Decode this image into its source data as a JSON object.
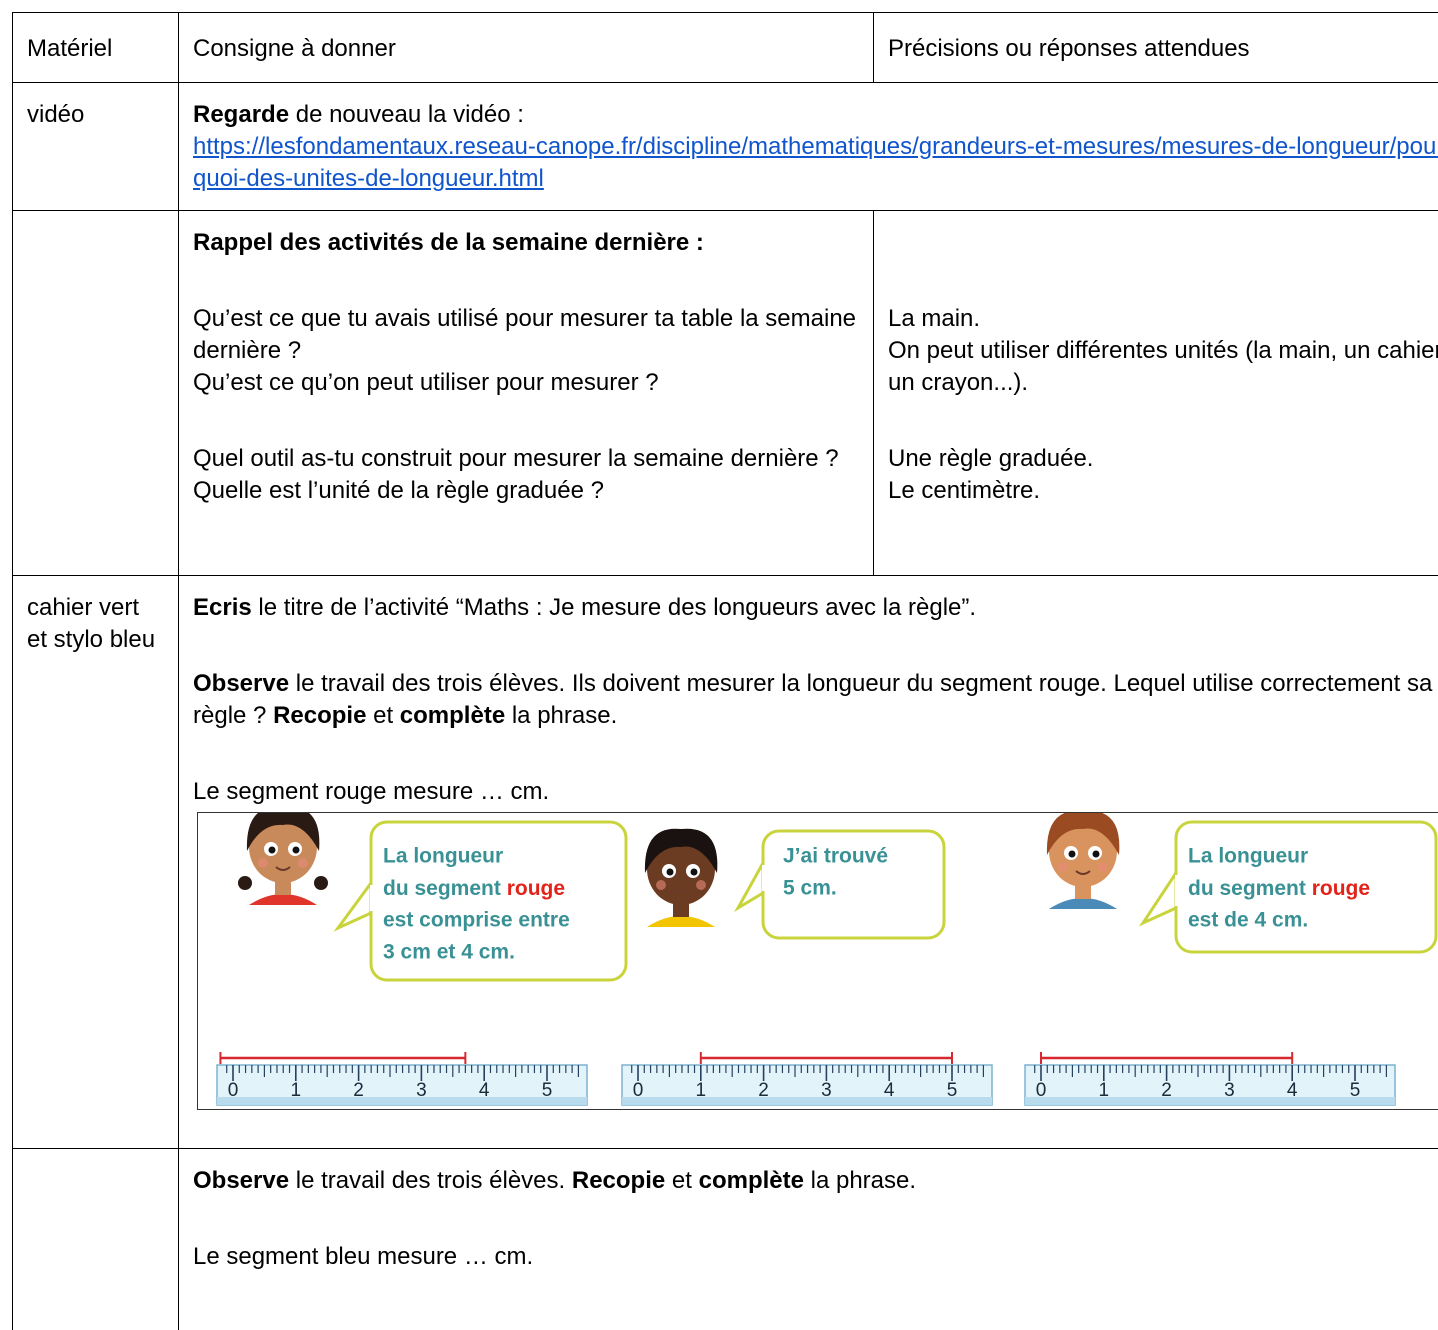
{
  "table": {
    "header": [
      "Matériel",
      "Consigne à donner",
      "Précisions ou réponses attendues"
    ],
    "rows": [
      [
        {
          "blocks": [
            [
              "vidéo"
            ]
          ]
        },
        {
          "blocks": [
            [
              [
                {
                  "text": "Regarde",
                  "bold": true
                },
                {
                  "text": " de nouveau la vidéo :"
                }
              ],
              [
                {
                  "text": "https://lesfondamentaux.reseau-canope.fr/discipline/mathematiques/grandeurs-et-mesures/mesures-de-longueur/pourquoi-des-unites-de-longueur.html",
                  "link": true
                }
              ]
            ]
          ]
        }
      ],
      [
        null,
        {
          "blocks": [
            [
              [
                {
                  "text": "Rappel des activités de la semaine dernière :",
                  "bold": true
                }
              ]
            ],
            [
              "Qu’est ce que tu avais utilisé pour mesurer ta table la semaine dernière ?",
              "Qu’est ce qu’on peut utiliser pour mesurer ?"
            ],
            [
              "Quel outil as-tu construit pour mesurer la semaine dernière ?",
              "Quelle est l’unité de la règle graduée ?"
            ]
          ]
        },
        {
          "blocks": [
            [
              "La main.",
              "On peut utiliser différentes unités (la main, un cahier, un crayon...)."
            ],
            [
              "Une règle graduée.",
              "Le centimètre."
            ]
          ]
        }
      ],
      [
        {
          "blocks": [
            [
              "cahier vert et stylo bleu"
            ]
          ]
        },
        {
          "blocks": [
            [
              [
                {
                  "text": "Ecris",
                  "bold": true
                },
                {
                  "text": " le titre de l’activité “Maths : Je mesure des longueurs avec la règle”."
                }
              ]
            ],
            [
              [
                {
                  "text": "Observe",
                  "bold": true
                },
                {
                  "text": " le travail des trois élèves. Ils doivent mesurer la longueur du segment rouge. Lequel utilise correctement sa règle ? "
                },
                {
                  "text": "Recopie",
                  "bold": true
                },
                {
                  "text": " et "
                },
                {
                  "text": "complète",
                  "bold": true
                },
                {
                  "text": " la phrase."
                }
              ]
            ],
            [
              "Le segment rouge mesure … cm."
            ]
          ],
          "figure": {
            "text_color": "#3a9195",
            "highlight_color": "#e2231a",
            "segment_color": "#d7282f",
            "panels": [
              {
                "bubble": [
                  "La longueur",
                  [
                    {
                      "text": "du segment "
                    },
                    {
                      "text": "rouge",
                      "highlight": true
                    }
                  ],
                  "est comprise entre",
                  "3 cm et 4 cm."
                ],
                "scale": [
                  0,
                  1,
                  2,
                  3,
                  4,
                  5
                ],
                "segment": [
                  -0.2,
                  3.7
                ]
              },
              {
                "bubble": [
                  "J’ai trouvé",
                  "5 cm."
                ],
                "scale": [
                  0,
                  1,
                  2,
                  3,
                  4,
                  5
                ],
                "segment": [
                  1,
                  5
                ]
              },
              {
                "bubble": [
                  "La longueur",
                  [
                    {
                      "text": "du segment "
                    },
                    {
                      "text": "rouge",
                      "highlight": true
                    }
                  ],
                  "est de 4 cm."
                ],
                "scale": [
                  0,
                  1,
                  2,
                  3,
                  4,
                  5
                ],
                "segment": [
                  0,
                  4
                ]
              }
            ]
          }
        }
      ],
      [
        null,
        {
          "blocks": [
            [
              [
                {
                  "text": "Observe",
                  "bold": true
                },
                {
                  "text": " le travail des trois élèves. "
                },
                {
                  "text": "Recopie",
                  "bold": true
                },
                {
                  "text": " et "
                },
                {
                  "text": "complète",
                  "bold": true
                },
                {
                  "text": " la phrase."
                }
              ]
            ],
            [
              "Le segment bleu mesure … cm."
            ]
          ]
        }
      ]
    ]
  }
}
